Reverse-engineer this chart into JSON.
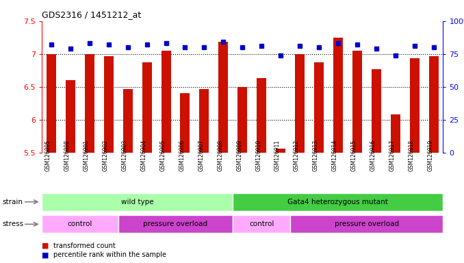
{
  "title": "GDS2316 / 1451212_at",
  "samples": [
    "GSM126895",
    "GSM126898",
    "GSM126901",
    "GSM126902",
    "GSM126903",
    "GSM126904",
    "GSM126905",
    "GSM126906",
    "GSM126907",
    "GSM126908",
    "GSM126909",
    "GSM126910",
    "GSM126911",
    "GSM126912",
    "GSM126913",
    "GSM126914",
    "GSM126915",
    "GSM126916",
    "GSM126917",
    "GSM126918",
    "GSM126919"
  ],
  "transformed_count": [
    7.0,
    6.6,
    7.0,
    6.97,
    6.47,
    6.87,
    7.05,
    6.4,
    6.47,
    7.18,
    6.5,
    6.63,
    5.56,
    7.0,
    6.87,
    7.25,
    7.05,
    6.77,
    6.08,
    6.93,
    6.97
  ],
  "percentile_rank": [
    82,
    79,
    83,
    82,
    80,
    82,
    83,
    80,
    80,
    84,
    80,
    81,
    74,
    81,
    80,
    83,
    82,
    79,
    74,
    81,
    80
  ],
  "ylim_left": [
    5.5,
    7.5
  ],
  "ylim_right": [
    0,
    100
  ],
  "bar_color": "#cc1100",
  "dot_color": "#0000cc",
  "background_color": "#ffffff",
  "plot_bg_color": "#ffffff",
  "strain_groups": [
    {
      "label": "wild type",
      "start": 0,
      "end": 10,
      "color": "#aaffaa"
    },
    {
      "label": "Gata4 heterozygous mutant",
      "start": 10,
      "end": 21,
      "color": "#44cc44"
    }
  ],
  "stress_groups": [
    {
      "label": "control",
      "start": 0,
      "end": 4,
      "color": "#ffaaff"
    },
    {
      "label": "pressure overload",
      "start": 4,
      "end": 10,
      "color": "#cc44cc"
    },
    {
      "label": "control",
      "start": 10,
      "end": 13,
      "color": "#ffaaff"
    },
    {
      "label": "pressure overload",
      "start": 13,
      "end": 21,
      "color": "#cc44cc"
    }
  ],
  "tick_bg_color": "#cccccc",
  "legend_red_label": "transformed count",
  "legend_blue_label": "percentile rank within the sample"
}
